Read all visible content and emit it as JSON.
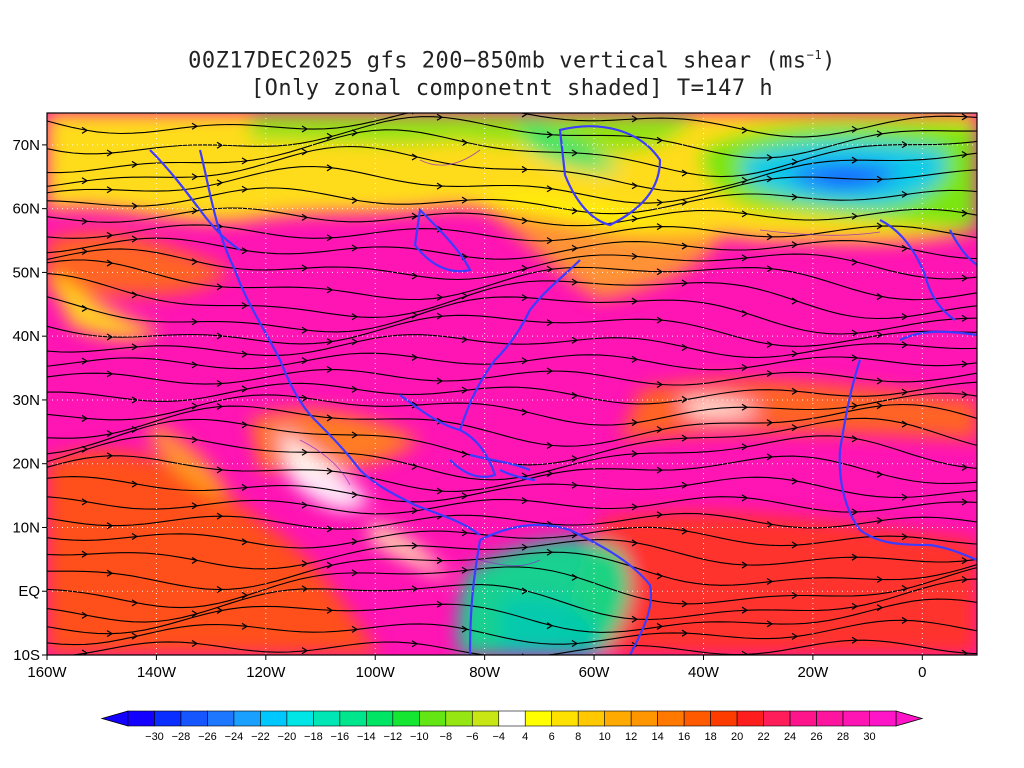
{
  "title": {
    "line1_prefix": "00Z17DEC2025 gfs 200−850mb vertical shear (ms",
    "line1_sup": "−1",
    "line1_suffix": ")",
    "line2": "[Only zonal componetnt shaded] T=147 h"
  },
  "axes": {
    "lat_labels": [
      "70N",
      "60N",
      "50N",
      "40N",
      "30N",
      "20N",
      "10N",
      "EQ",
      "10S"
    ],
    "lat_values": [
      70,
      60,
      50,
      40,
      30,
      20,
      10,
      0,
      -10
    ],
    "lon_labels": [
      "160W",
      "140W",
      "120W",
      "100W",
      "80W",
      "60W",
      "40W",
      "20W",
      "0"
    ],
    "lon_values": [
      -160,
      -140,
      -120,
      -100,
      -80,
      -60,
      -40,
      -20,
      0
    ],
    "lon_range": [
      -160,
      10
    ],
    "lat_range": [
      -10,
      75
    ],
    "grid": "dotted"
  },
  "colorbar": {
    "labels": [
      "−30",
      "−28",
      "−26",
      "−24",
      "−22",
      "−20",
      "−18",
      "−16",
      "−14",
      "−12",
      "−10",
      "−8",
      "−6",
      "−4",
      "4",
      "6",
      "8",
      "10",
      "12",
      "14",
      "16",
      "18",
      "20",
      "22",
      "24",
      "26",
      "28",
      "30"
    ],
    "colors": [
      "#1400ff",
      "#0a2eff",
      "#1656ff",
      "#1e78ff",
      "#1aa0ff",
      "#00c8ff",
      "#00e6e6",
      "#00e6b4",
      "#00e68c",
      "#00e664",
      "#14e632",
      "#64e614",
      "#96e614",
      "#c8e614",
      "#ffffff",
      "#ffff00",
      "#ffe100",
      "#ffc800",
      "#ffaa00",
      "#ff9600",
      "#ff7800",
      "#ff5a00",
      "#ff3c00",
      "#ff1e1e",
      "#ff1e5a",
      "#ff148c",
      "#ff14a0",
      "#ff14b4",
      "#ff14c8"
    ]
  },
  "legend_colors": {
    "coastline": "#3c3cff",
    "streamlines": "#000000",
    "minor_contours": "#8c28c8"
  }
}
